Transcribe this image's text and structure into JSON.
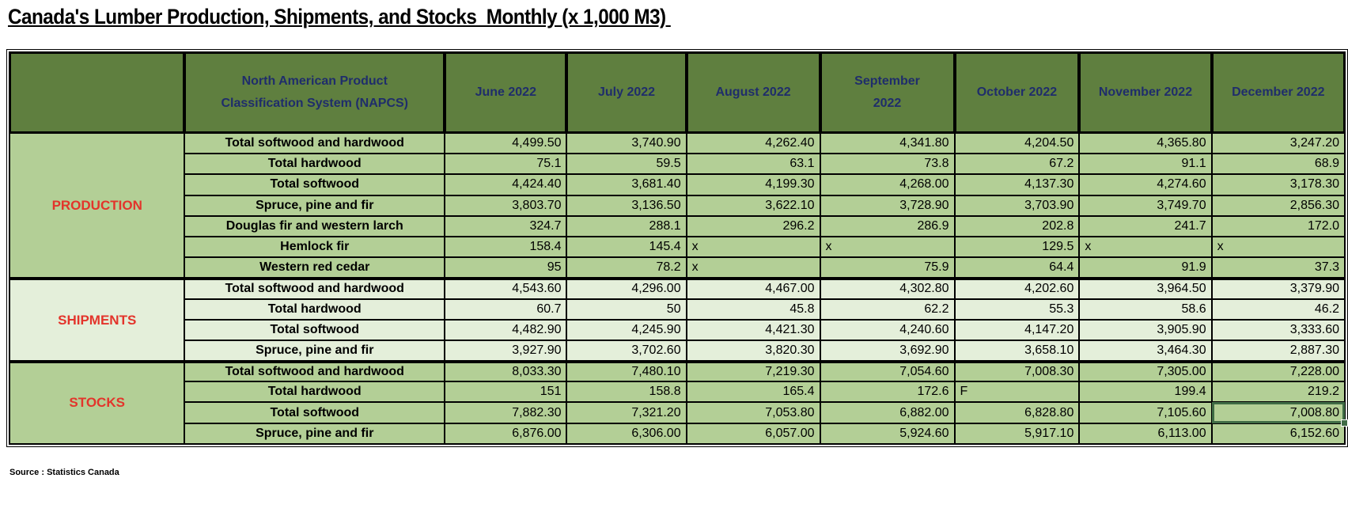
{
  "title": "Canada's Lumber Production, Shipments, and Stocks  Monthly (x 1,000 M3) ",
  "header": {
    "napcs": "North American Product Classification System (NAPCS)",
    "months": [
      "June 2022",
      "July 2022",
      "August 2022",
      "September 2022",
      "October 2022",
      "November 2022",
      "December 2022"
    ]
  },
  "colors": {
    "header": "#5f7f3f",
    "production": "#b3cf96",
    "shipments": "#e4efda",
    "stocks": "#b3cf96",
    "group_label": "#e3342b",
    "header_text": "#1f2d6b"
  },
  "groups": [
    {
      "label": "PRODUCTION",
      "rows": [
        {
          "item": "Total softwood and hardwood",
          "values": [
            "4,499.50",
            "3,740.90",
            "4,262.40",
            "4,341.80",
            "4,204.50",
            "4,365.80",
            "3,247.20"
          ]
        },
        {
          "item": "Total hardwood",
          "values": [
            "75.1",
            "59.5",
            "63.1",
            "73.8",
            "67.2",
            "91.1",
            "68.9"
          ]
        },
        {
          "item": "Total softwood",
          "values": [
            "4,424.40",
            "3,681.40",
            "4,199.30",
            "4,268.00",
            "4,137.30",
            "4,274.60",
            "3,178.30"
          ]
        },
        {
          "item": "Spruce, pine and fir",
          "values": [
            "3,803.70",
            "3,136.50",
            "3,622.10",
            "3,728.90",
            "3,703.90",
            "3,749.70",
            "2,856.30"
          ]
        },
        {
          "item": "Douglas fir and western larch",
          "values": [
            "324.7",
            "288.1",
            "296.2",
            "286.9",
            "202.8",
            "241.7",
            "172.0"
          ]
        },
        {
          "item": "Hemlock fir",
          "values": [
            "158.4",
            "145.4",
            "x",
            "x",
            "129.5",
            "x",
            "x"
          ]
        },
        {
          "item": "Western red cedar",
          "values": [
            "95",
            "78.2",
            "x",
            "75.9",
            "64.4",
            "91.9",
            "37.3"
          ]
        }
      ]
    },
    {
      "label": "SHIPMENTS",
      "rows": [
        {
          "item": "Total softwood and hardwood",
          "values": [
            "4,543.60",
            "4,296.00",
            "4,467.00",
            "4,302.80",
            "4,202.60",
            "3,964.50",
            "3,379.90"
          ]
        },
        {
          "item": "Total hardwood",
          "values": [
            "60.7",
            "50",
            "45.8",
            "62.2",
            "55.3",
            "58.6",
            "46.2"
          ]
        },
        {
          "item": "Total softwood",
          "values": [
            "4,482.90",
            "4,245.90",
            "4,421.30",
            "4,240.60",
            "4,147.20",
            "3,905.90",
            "3,333.60"
          ]
        },
        {
          "item": "Spruce, pine and fir",
          "values": [
            "3,927.90",
            "3,702.60",
            "3,820.30",
            "3,692.90",
            "3,658.10",
            "3,464.30",
            "2,887.30"
          ]
        }
      ]
    },
    {
      "label": "STOCKS",
      "rows": [
        {
          "item": "Total softwood and hardwood",
          "values": [
            "8,033.30",
            "7,480.10",
            "7,219.30",
            "7,054.60",
            "7,008.30",
            "7,305.00",
            "7,228.00"
          ]
        },
        {
          "item": "Total hardwood",
          "values": [
            "151",
            "158.8",
            "165.4",
            "172.6",
            "F",
            "199.4",
            "219.2"
          ]
        },
        {
          "item": "Total softwood",
          "values": [
            "7,882.30",
            "7,321.20",
            "7,053.80",
            "6,882.00",
            "6,828.80",
            "7,105.60",
            "7,008.80"
          ]
        },
        {
          "item": "Spruce, pine and fir",
          "values": [
            "6,876.00",
            "6,306.00",
            "6,057.00",
            "5,924.60",
            "5,917.10",
            "6,113.00",
            "6,152.60"
          ]
        }
      ]
    }
  ],
  "source": "Source : Statistics Canada"
}
